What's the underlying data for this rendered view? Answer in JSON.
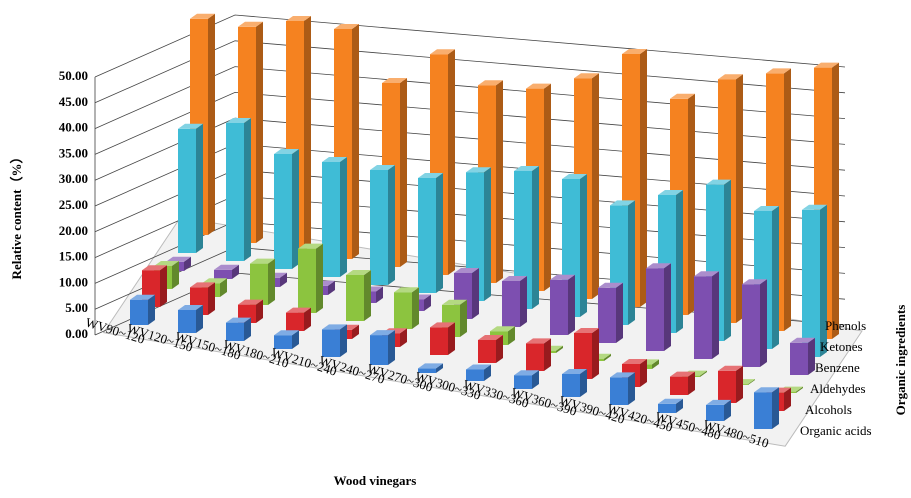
{
  "chart_data": {
    "type": "bar3d",
    "y_label": "Relative content（%）",
    "x_label": "Wood vinegars",
    "z_label": "Organic ingredients",
    "categories": [
      "WV90~120",
      "WV120~150",
      "WV150~180",
      "WV180~210",
      "WV210~240",
      "WV240~270",
      "WV270~300",
      "WV300~330",
      "WV330~360",
      "WV360~390",
      "WV390~420",
      "WV420~450",
      "WV450~480",
      "WV480~510"
    ],
    "series": [
      {
        "name": "Organic acids",
        "color": "#3a7fd5",
        "values": [
          5.5,
          5,
          4,
          3,
          6,
          6.5,
          1,
          2.5,
          3,
          5,
          6,
          2,
          3.5,
          8
        ]
      },
      {
        "name": "Alcohols",
        "color": "#d9262b",
        "values": [
          8,
          6,
          4,
          4,
          2,
          3,
          6,
          5,
          6,
          10,
          5,
          4,
          7,
          4
        ]
      },
      {
        "name": "Aldehydes",
        "color": "#8cc43f",
        "values": [
          5,
          3,
          9,
          14,
          10,
          8,
          7,
          3,
          0.5,
          0.5,
          1,
          0.3,
          0.2,
          0.3
        ]
      },
      {
        "name": "Benzene",
        "color": "#7d4fb0",
        "values": [
          2,
          2,
          2,
          2,
          2.5,
          2.5,
          10,
          10,
          12,
          12,
          18,
          18,
          18,
          7
        ]
      },
      {
        "name": "Ketones",
        "color": "#3fbcd6",
        "values": [
          27,
          30,
          25,
          25,
          25,
          25,
          28,
          30,
          30,
          26,
          30,
          34,
          30,
          32
        ]
      },
      {
        "name": "Phenols",
        "color": "#f58220",
        "values": [
          47,
          47,
          50,
          50,
          40,
          48,
          43,
          44,
          48,
          55,
          47,
          53,
          56,
          59
        ]
      }
    ],
    "ylim": [
      0,
      50
    ],
    "yticks": [
      {
        "value": 0,
        "label": "0.00"
      },
      {
        "value": 5,
        "label": "5.00"
      },
      {
        "value": 10,
        "label": "10.00"
      },
      {
        "value": 15,
        "label": "15.00"
      },
      {
        "value": 20,
        "label": "20.00"
      },
      {
        "value": 25,
        "label": "25.00"
      },
      {
        "value": 30,
        "label": "30.00"
      },
      {
        "value": 35,
        "label": "35.00"
      },
      {
        "value": 40,
        "label": "40.00"
      },
      {
        "value": 45,
        "label": "45.00"
      },
      {
        "value": 50,
        "label": "50.00"
      }
    ],
    "grid": true
  }
}
